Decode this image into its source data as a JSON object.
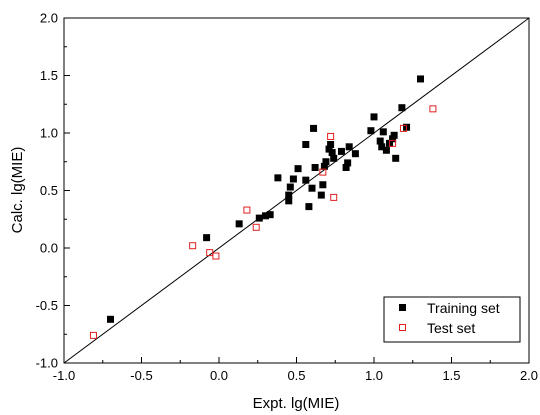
{
  "chart_data": {
    "type": "scatter",
    "title": "",
    "xlabel": "Expt. lg(MIE)",
    "ylabel": "Calc. lg(MIE)",
    "xlim": [
      -1.0,
      2.0
    ],
    "ylim": [
      -1.0,
      2.0
    ],
    "xticks": [
      "-1.0",
      "-0.5",
      "0.0",
      "0.5",
      "1.0",
      "1.5",
      "2.0"
    ],
    "yticks": [
      "-1.0",
      "-0.5",
      "0.0",
      "0.5",
      "1.0",
      "1.5",
      "2.0"
    ],
    "grid": false,
    "legend_position": "bottom-right",
    "reference_line": {
      "from": [
        -1.0,
        -1.0
      ],
      "to": [
        2.0,
        2.0
      ]
    },
    "series": [
      {
        "name": "Training set",
        "marker": "filled-square",
        "color": "#000000",
        "points": [
          [
            -0.7,
            -0.62
          ],
          [
            -0.08,
            0.09
          ],
          [
            0.13,
            0.21
          ],
          [
            0.26,
            0.26
          ],
          [
            0.3,
            0.28
          ],
          [
            0.33,
            0.29
          ],
          [
            0.38,
            0.61
          ],
          [
            0.45,
            0.41
          ],
          [
            0.45,
            0.46
          ],
          [
            0.46,
            0.53
          ],
          [
            0.48,
            0.6
          ],
          [
            0.51,
            0.69
          ],
          [
            0.56,
            0.59
          ],
          [
            0.56,
            0.9
          ],
          [
            0.58,
            0.36
          ],
          [
            0.6,
            0.52
          ],
          [
            0.61,
            1.04
          ],
          [
            0.62,
            0.7
          ],
          [
            0.66,
            0.46
          ],
          [
            0.67,
            0.55
          ],
          [
            0.68,
            0.71
          ],
          [
            0.69,
            0.75
          ],
          [
            0.71,
            0.86
          ],
          [
            0.72,
            0.9
          ],
          [
            0.73,
            0.83
          ],
          [
            0.74,
            0.78
          ],
          [
            0.79,
            0.84
          ],
          [
            0.82,
            0.7
          ],
          [
            0.83,
            0.74
          ],
          [
            0.84,
            0.88
          ],
          [
            0.88,
            0.82
          ],
          [
            0.98,
            1.02
          ],
          [
            1.0,
            1.14
          ],
          [
            1.04,
            0.93
          ],
          [
            1.05,
            0.88
          ],
          [
            1.06,
            1.01
          ],
          [
            1.08,
            0.85
          ],
          [
            1.1,
            0.91
          ],
          [
            1.12,
            0.95
          ],
          [
            1.13,
            0.98
          ],
          [
            1.14,
            0.78
          ],
          [
            1.18,
            1.22
          ],
          [
            1.21,
            1.05
          ],
          [
            1.3,
            1.47
          ]
        ]
      },
      {
        "name": "Test set",
        "marker": "open-square",
        "color": "#e02020",
        "points": [
          [
            -0.81,
            -0.76
          ],
          [
            -0.17,
            0.02
          ],
          [
            -0.06,
            -0.04
          ],
          [
            -0.02,
            -0.07
          ],
          [
            0.18,
            0.33
          ],
          [
            0.24,
            0.18
          ],
          [
            0.67,
            0.66
          ],
          [
            0.72,
            0.97
          ],
          [
            0.74,
            0.44
          ],
          [
            1.12,
            0.91
          ],
          [
            1.19,
            1.04
          ],
          [
            1.38,
            1.21
          ]
        ]
      }
    ]
  }
}
